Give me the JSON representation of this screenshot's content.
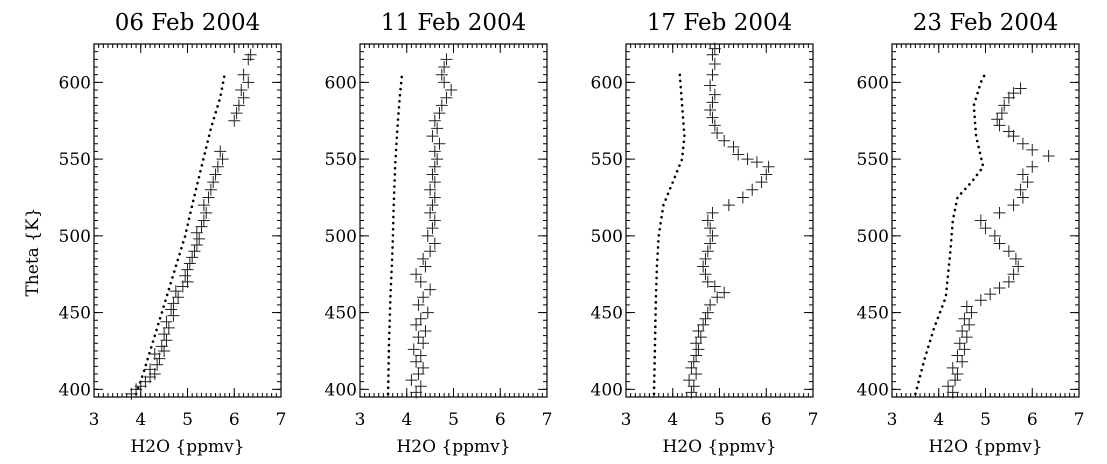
{
  "chart_data": [
    {
      "type": "scatter",
      "title": "06 Feb 2004",
      "xlabel": "H2O {ppmv}",
      "ylabel": "Theta {K}",
      "xlim": [
        3,
        7
      ],
      "ylim": [
        395,
        625
      ],
      "x_ticks": [
        "3",
        "4",
        "5",
        "6",
        "7"
      ],
      "y_ticks": [
        "400",
        "450",
        "500",
        "550",
        "600"
      ],
      "series": [
        {
          "style": "dotted-line",
          "points": [
            [
              3.9,
              397
            ],
            [
              4.05,
              410
            ],
            [
              4.2,
              425
            ],
            [
              4.4,
              445
            ],
            [
              4.6,
              465
            ],
            [
              4.8,
              485
            ],
            [
              4.95,
              500
            ],
            [
              5.1,
              520
            ],
            [
              5.3,
              545
            ],
            [
              5.5,
              570
            ],
            [
              5.7,
              590
            ],
            [
              5.8,
              606
            ]
          ]
        },
        {
          "style": "plus-markers",
          "points": [
            [
              3.8,
              397
            ],
            [
              3.9,
              400
            ],
            [
              4.0,
              402
            ],
            [
              4.1,
              405
            ],
            [
              4.2,
              408
            ],
            [
              4.3,
              410
            ],
            [
              4.2,
              413
            ],
            [
              4.35,
              416
            ],
            [
              4.4,
              420
            ],
            [
              4.3,
              423
            ],
            [
              4.5,
              425
            ],
            [
              4.45,
              428
            ],
            [
              4.55,
              432
            ],
            [
              4.5,
              436
            ],
            [
              4.6,
              440
            ],
            [
              4.55,
              444
            ],
            [
              4.7,
              448
            ],
            [
              4.65,
              452
            ],
            [
              4.7,
              456
            ],
            [
              4.8,
              460
            ],
            [
              4.75,
              464
            ],
            [
              4.9,
              467
            ],
            [
              5.0,
              470
            ],
            [
              4.95,
              474
            ],
            [
              5.0,
              478
            ],
            [
              5.05,
              482
            ],
            [
              5.1,
              486
            ],
            [
              5.15,
              490
            ],
            [
              5.2,
              494
            ],
            [
              5.25,
              498
            ],
            [
              5.2,
              502
            ],
            [
              5.3,
              506
            ],
            [
              5.35,
              510
            ],
            [
              5.4,
              515
            ],
            [
              5.35,
              520
            ],
            [
              5.45,
              525
            ],
            [
              5.5,
              530
            ],
            [
              5.55,
              535
            ],
            [
              5.6,
              540
            ],
            [
              5.65,
              545
            ],
            [
              5.75,
              550
            ],
            [
              5.7,
              555
            ],
            [
              6.0,
              575
            ],
            [
              6.05,
              580
            ],
            [
              6.1,
              585
            ],
            [
              6.2,
              590
            ],
            [
              6.15,
              595
            ],
            [
              6.3,
              600
            ],
            [
              6.2,
              605
            ],
            [
              6.3,
              615
            ],
            [
              6.35,
              618
            ]
          ]
        }
      ]
    },
    {
      "type": "scatter",
      "title": "11 Feb 2004",
      "xlabel": "H2O {ppmv}",
      "xlim": [
        3,
        7
      ],
      "ylim": [
        395,
        625
      ],
      "x_ticks": [
        "3",
        "4",
        "5",
        "6",
        "7"
      ],
      "y_ticks": [
        "400",
        "450",
        "500",
        "550",
        "600"
      ],
      "series": [
        {
          "style": "dotted-line",
          "points": [
            [
              3.6,
              397
            ],
            [
              3.62,
              430
            ],
            [
              3.65,
              460
            ],
            [
              3.68,
              480
            ],
            [
              3.7,
              495
            ],
            [
              3.72,
              520
            ],
            [
              3.75,
              545
            ],
            [
              3.8,
              570
            ],
            [
              3.85,
              590
            ],
            [
              3.9,
              606
            ]
          ]
        },
        {
          "style": "plus-markers",
          "points": [
            [
              4.2,
              398
            ],
            [
              4.3,
              402
            ],
            [
              4.1,
              406
            ],
            [
              4.25,
              410
            ],
            [
              4.35,
              414
            ],
            [
              4.2,
              418
            ],
            [
              4.3,
              422
            ],
            [
              4.15,
              426
            ],
            [
              4.35,
              430
            ],
            [
              4.25,
              434
            ],
            [
              4.4,
              438
            ],
            [
              4.2,
              442
            ],
            [
              4.3,
              446
            ],
            [
              4.45,
              450
            ],
            [
              4.25,
              455
            ],
            [
              4.35,
              460
            ],
            [
              4.5,
              465
            ],
            [
              4.3,
              470
            ],
            [
              4.2,
              475
            ],
            [
              4.4,
              480
            ],
            [
              4.35,
              485
            ],
            [
              4.5,
              490
            ],
            [
              4.6,
              495
            ],
            [
              4.45,
              500
            ],
            [
              4.55,
              505
            ],
            [
              4.6,
              510
            ],
            [
              4.5,
              515
            ],
            [
              4.55,
              520
            ],
            [
              4.6,
              525
            ],
            [
              4.5,
              530
            ],
            [
              4.6,
              535
            ],
            [
              4.55,
              540
            ],
            [
              4.6,
              545
            ],
            [
              4.65,
              550
            ],
            [
              4.6,
              555
            ],
            [
              4.7,
              560
            ],
            [
              4.55,
              565
            ],
            [
              4.65,
              570
            ],
            [
              4.6,
              575
            ],
            [
              4.7,
              580
            ],
            [
              4.75,
              585
            ],
            [
              4.85,
              590
            ],
            [
              4.95,
              595
            ],
            [
              4.8,
              600
            ],
            [
              4.75,
              605
            ],
            [
              4.8,
              610
            ],
            [
              4.85,
              615
            ]
          ]
        }
      ]
    },
    {
      "type": "scatter",
      "title": "17 Feb 2004",
      "xlabel": "H2O {ppmv}",
      "xlim": [
        3,
        7
      ],
      "ylim": [
        395,
        625
      ],
      "x_ticks": [
        "3",
        "4",
        "5",
        "6",
        "7"
      ],
      "y_ticks": [
        "400",
        "450",
        "500",
        "550",
        "600"
      ],
      "series": [
        {
          "style": "dotted-line",
          "points": [
            [
              3.6,
              397
            ],
            [
              3.62,
              430
            ],
            [
              3.64,
              460
            ],
            [
              3.66,
              480
            ],
            [
              3.7,
              500
            ],
            [
              3.8,
              520
            ],
            [
              4.0,
              535
            ],
            [
              4.2,
              550
            ],
            [
              4.25,
              565
            ],
            [
              4.2,
              585
            ],
            [
              4.15,
              605
            ]
          ]
        },
        {
          "style": "plus-markers",
          "points": [
            [
              4.4,
              398
            ],
            [
              4.45,
              402
            ],
            [
              4.35,
              406
            ],
            [
              4.5,
              410
            ],
            [
              4.4,
              414
            ],
            [
              4.45,
              418
            ],
            [
              4.5,
              422
            ],
            [
              4.55,
              426
            ],
            [
              4.5,
              430
            ],
            [
              4.6,
              434
            ],
            [
              4.55,
              438
            ],
            [
              4.65,
              442
            ],
            [
              4.7,
              446
            ],
            [
              4.75,
              450
            ],
            [
              4.8,
              455
            ],
            [
              4.95,
              460
            ],
            [
              5.1,
              463
            ],
            [
              4.9,
              467
            ],
            [
              4.75,
              470
            ],
            [
              4.7,
              475
            ],
            [
              4.65,
              480
            ],
            [
              4.7,
              485
            ],
            [
              4.75,
              490
            ],
            [
              4.8,
              495
            ],
            [
              4.85,
              500
            ],
            [
              4.8,
              505
            ],
            [
              4.75,
              510
            ],
            [
              4.85,
              515
            ],
            [
              5.2,
              520
            ],
            [
              5.5,
              525
            ],
            [
              5.7,
              530
            ],
            [
              5.9,
              535
            ],
            [
              6.0,
              540
            ],
            [
              6.05,
              545
            ],
            [
              5.8,
              548
            ],
            [
              5.6,
              550
            ],
            [
              5.4,
              553
            ],
            [
              5.3,
              558
            ],
            [
              5.1,
              562
            ],
            [
              4.95,
              567
            ],
            [
              4.9,
              572
            ],
            [
              4.85,
              577
            ],
            [
              4.8,
              582
            ],
            [
              4.85,
              587
            ],
            [
              4.9,
              592
            ],
            [
              4.8,
              598
            ],
            [
              4.85,
              605
            ],
            [
              4.9,
              612
            ],
            [
              4.85,
              618
            ],
            [
              4.9,
              622
            ]
          ]
        }
      ]
    },
    {
      "type": "scatter",
      "title": "23 Feb 2004",
      "xlabel": "H2O {ppmv}",
      "xlim": [
        3,
        7
      ],
      "ylim": [
        395,
        625
      ],
      "x_ticks": [
        "3",
        "4",
        "5",
        "6",
        "7"
      ],
      "y_ticks": [
        "400",
        "450",
        "500",
        "550",
        "600"
      ],
      "series": [
        {
          "style": "dotted-line",
          "points": [
            [
              3.5,
              397
            ],
            [
              3.7,
              420
            ],
            [
              3.9,
              440
            ],
            [
              4.15,
              460
            ],
            [
              4.2,
              475
            ],
            [
              4.25,
              490
            ],
            [
              4.3,
              510
            ],
            [
              4.4,
              525
            ],
            [
              4.7,
              535
            ],
            [
              4.95,
              545
            ],
            [
              4.8,
              565
            ],
            [
              4.75,
              585
            ],
            [
              4.9,
              600
            ],
            [
              5.0,
              606
            ]
          ]
        },
        {
          "style": "plus-markers",
          "points": [
            [
              4.3,
              398
            ],
            [
              4.2,
              402
            ],
            [
              4.35,
              406
            ],
            [
              4.4,
              410
            ],
            [
              4.3,
              414
            ],
            [
              4.5,
              418
            ],
            [
              4.4,
              422
            ],
            [
              4.55,
              426
            ],
            [
              4.45,
              430
            ],
            [
              4.6,
              434
            ],
            [
              4.5,
              438
            ],
            [
              4.65,
              442
            ],
            [
              4.55,
              446
            ],
            [
              4.7,
              450
            ],
            [
              4.6,
              454
            ],
            [
              4.9,
              458
            ],
            [
              5.1,
              462
            ],
            [
              5.3,
              466
            ],
            [
              5.5,
              470
            ],
            [
              5.6,
              475
            ],
            [
              5.7,
              480
            ],
            [
              5.65,
              485
            ],
            [
              5.5,
              490
            ],
            [
              5.3,
              495
            ],
            [
              5.2,
              500
            ],
            [
              5.0,
              505
            ],
            [
              4.9,
              510
            ],
            [
              5.3,
              515
            ],
            [
              5.6,
              520
            ],
            [
              5.8,
              525
            ],
            [
              5.75,
              530
            ],
            [
              5.9,
              535
            ],
            [
              5.8,
              540
            ],
            [
              6.0,
              545
            ],
            [
              6.35,
              552
            ],
            [
              6.0,
              556
            ],
            [
              5.8,
              560
            ],
            [
              5.6,
              565
            ],
            [
              5.5,
              568
            ],
            [
              5.3,
              572
            ],
            [
              5.25,
              576
            ],
            [
              5.35,
              580
            ],
            [
              5.4,
              585
            ],
            [
              5.5,
              590
            ],
            [
              5.6,
              593
            ],
            [
              5.75,
              596
            ]
          ]
        }
      ]
    }
  ]
}
